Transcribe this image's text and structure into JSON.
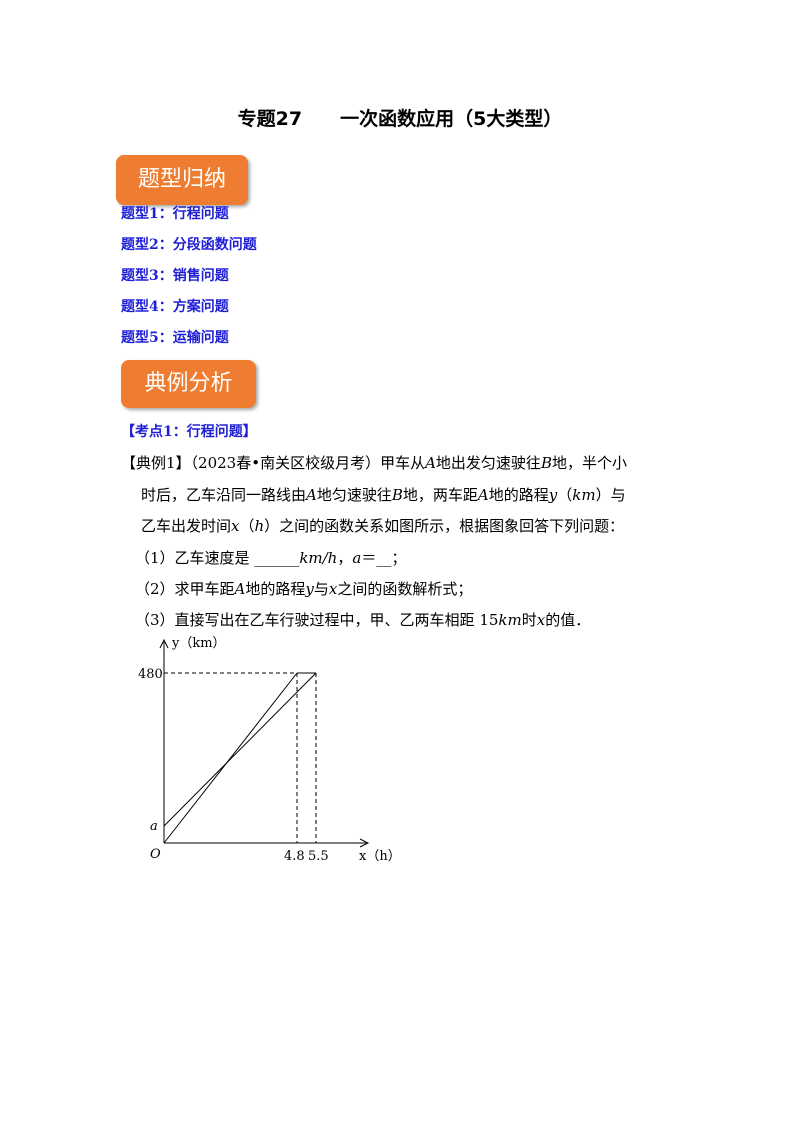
{
  "header": {
    "title": "专题27　　一次函数应用（5大类型）"
  },
  "section1": {
    "badge": "题型归纳",
    "items": [
      "题型1：行程问题",
      "题型2：分段函数问题",
      "题型3：销售问题",
      "题型4：方案问题",
      "题型5：运输问题"
    ]
  },
  "section2": {
    "badge": "典例分析",
    "topic": "【考点1：行程问题】",
    "lines": [
      [
        "【典例1】（2023春•南关区校级月考）甲车从",
        "A",
        "地出发匀速驶往",
        "B",
        "地，半个小"
      ],
      [
        "时后，乙车沿同一路线由",
        "A",
        "地匀速驶往",
        "B",
        "地，两车距",
        "A",
        "地的路程",
        "y",
        "（",
        "km",
        "）与"
      ],
      [
        "乙车出发时间",
        "x",
        "（",
        "h",
        "）之间的函数关系如图所示，根据图象回答下列问题："
      ],
      [
        "（1）乙车速度是 ______",
        "km/h",
        "，",
        "a",
        "＝__；"
      ],
      [
        "（2）求甲车距",
        "A",
        "地的路程",
        "y",
        "与",
        "x",
        "之间的函数解析式；"
      ],
      [
        "（3）直接写出在乙车行驶过程中，甲、乙两车相距 15",
        "km",
        "时",
        "x",
        "的值．"
      ]
    ]
  },
  "graph": {
    "y_label": "y（km）",
    "x_label": "x（h）",
    "origin": "O",
    "intercept": "a",
    "y_tick": "480",
    "x_ticks": [
      "4.8",
      "5.5"
    ]
  }
}
